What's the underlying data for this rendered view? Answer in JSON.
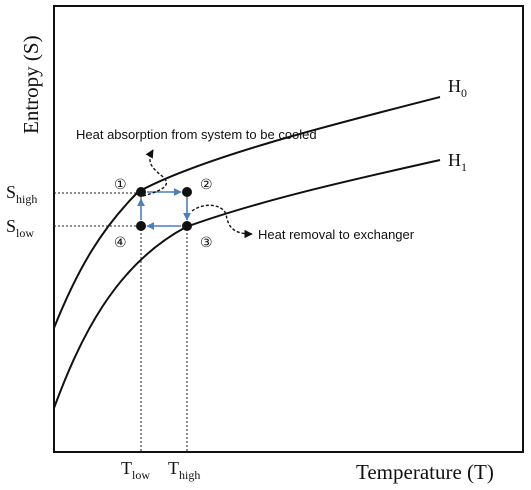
{
  "diagram": {
    "y_axis_label": "Entropy (S)",
    "x_axis_label": "Temperature (T)",
    "curves": [
      {
        "name_main": "H",
        "name_sub": "0"
      },
      {
        "name_main": "H",
        "name_sub": "1"
      }
    ],
    "y_ticks": [
      {
        "main": "S",
        "sub": "high"
      },
      {
        "main": "S",
        "sub": "low"
      }
    ],
    "x_ticks": [
      {
        "main": "T",
        "sub": "low"
      },
      {
        "main": "T",
        "sub": "high"
      }
    ],
    "points": [
      "①",
      "②",
      "③",
      "④"
    ],
    "annotations": {
      "heat_absorption": "Heat absorption from system to be cooled",
      "heat_removal": "Heat removal to exchanger"
    },
    "colors": {
      "cycle_arrow": "#4a7fc1",
      "line": "#111111"
    }
  }
}
